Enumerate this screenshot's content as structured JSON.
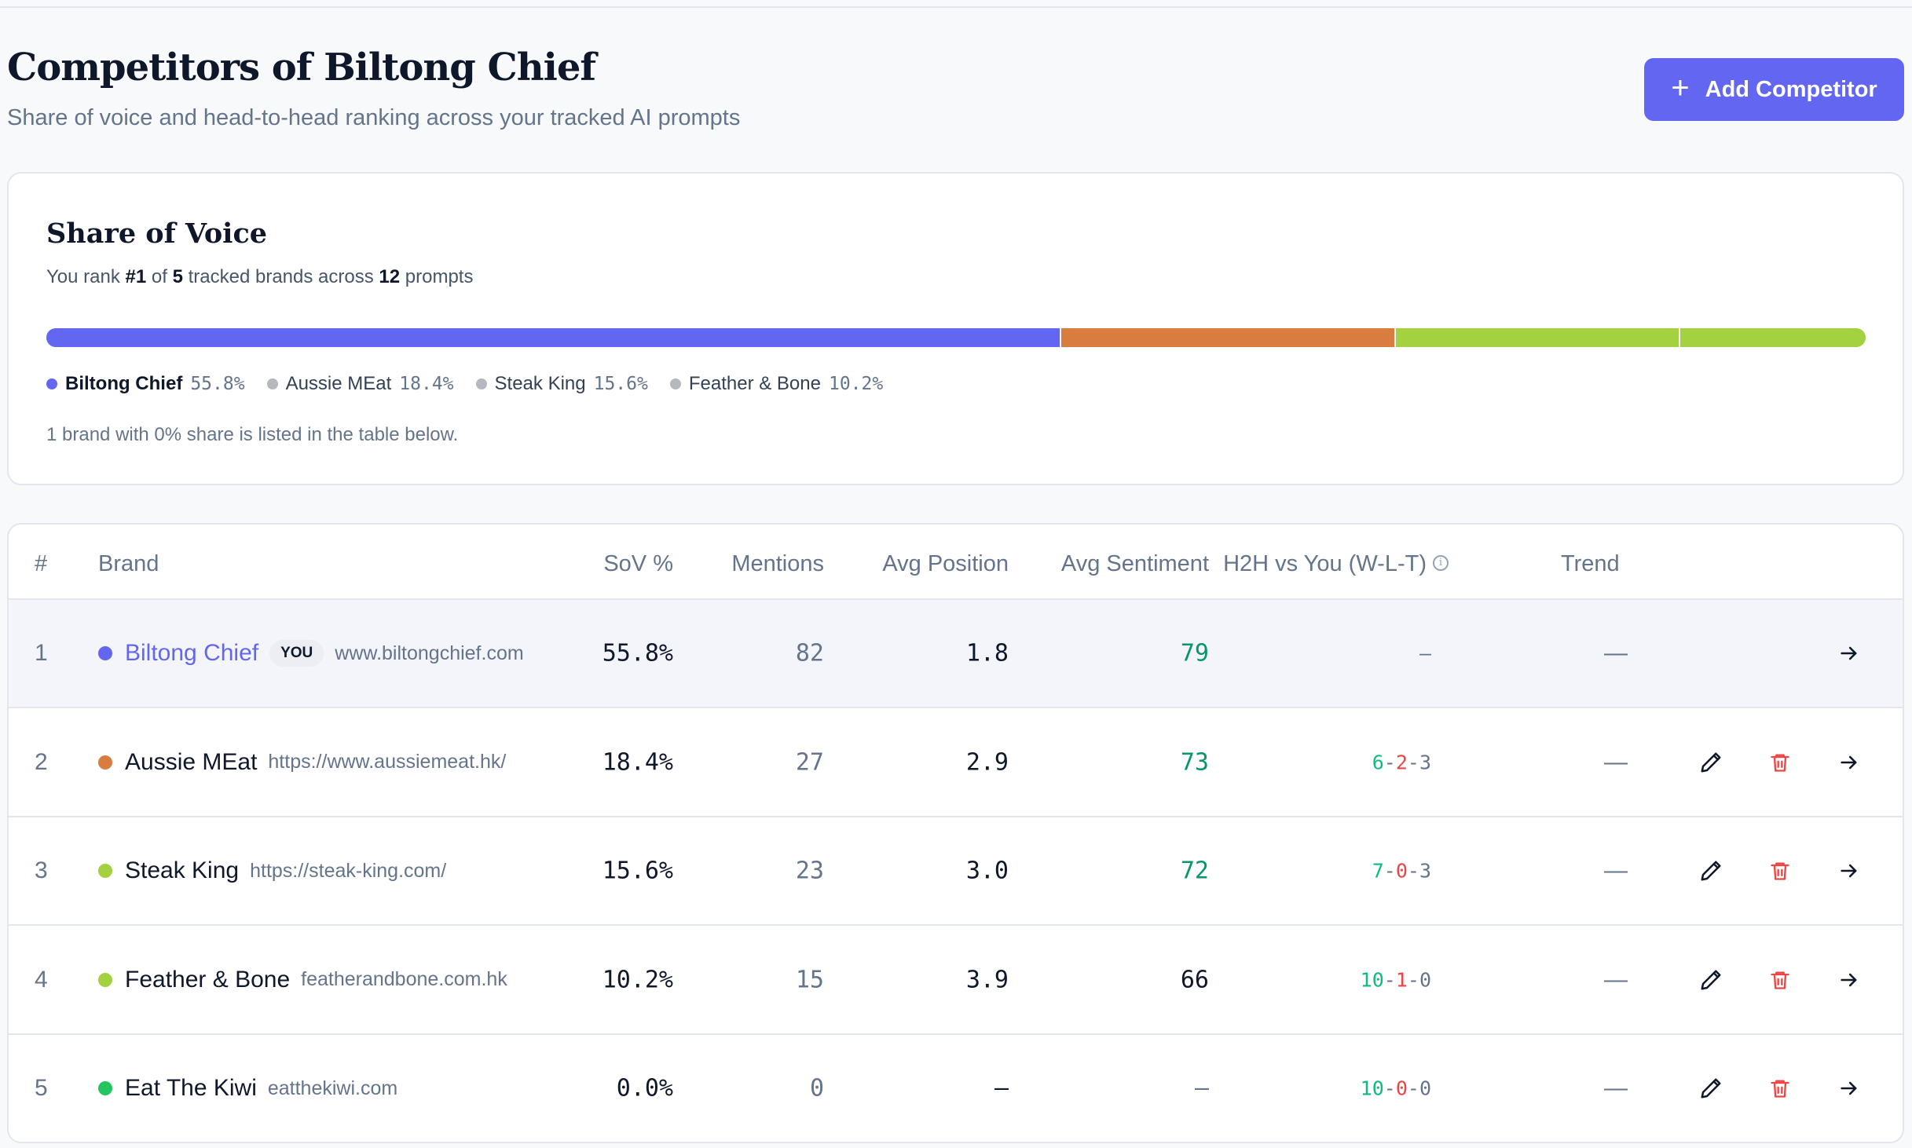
{
  "header": {
    "title": "Competitors of Biltong Chief",
    "subtitle": "Share of voice and head-to-head ranking across your tracked AI prompts",
    "add_button": "Add Competitor"
  },
  "share_of_voice": {
    "title": "Share of Voice",
    "rank_prefix": "You rank ",
    "rank": "#1",
    "rank_mid": " of ",
    "brand_count": "5",
    "rank_mid2": " tracked brands across ",
    "prompt_count": "12",
    "rank_suffix": " prompts",
    "segments": [
      {
        "name": "Biltong Chief",
        "value": 55.8,
        "label": "55.8%",
        "color": "#6366f1",
        "legend_dot": "#6366f1"
      },
      {
        "name": "Aussie MEat",
        "value": 18.4,
        "label": "18.4%",
        "color": "#d97c3f",
        "legend_dot": "#b5b8be"
      },
      {
        "name": "Steak King",
        "value": 15.6,
        "label": "15.6%",
        "color": "#a3d140",
        "legend_dot": "#b5b8be"
      },
      {
        "name": "Feather & Bone",
        "value": 10.2,
        "label": "10.2%",
        "color": "#a3d140",
        "legend_dot": "#b5b8be"
      }
    ],
    "note": "1 brand with 0% share is listed in the table below."
  },
  "table": {
    "headers": {
      "rank": "#",
      "brand": "Brand",
      "sov": "SoV %",
      "mentions": "Mentions",
      "avg_position": "Avg Position",
      "avg_sentiment": "Avg Sentiment",
      "h2h": "H2H vs You (W-L-T)",
      "trend": "Trend"
    },
    "rows": [
      {
        "rank": "1",
        "name": "Biltong Chief",
        "you": true,
        "badge": "YOU",
        "url": "www.biltongchief.com",
        "color": "#6366f1",
        "sov": "55.8%",
        "mentions": "82",
        "position": "1.8",
        "sentiment": "79",
        "sentiment_tone": "good",
        "h2h": "–",
        "trend": "—"
      },
      {
        "rank": "2",
        "name": "Aussie MEat",
        "you": false,
        "url": "https://www.aussiemeat.hk/",
        "color": "#d97c3f",
        "sov": "18.4%",
        "mentions": "27",
        "position": "2.9",
        "sentiment": "73",
        "sentiment_tone": "good",
        "h2h_w": "6",
        "h2h_l": "2",
        "h2h_t": "3",
        "trend": "—"
      },
      {
        "rank": "3",
        "name": "Steak King",
        "you": false,
        "url": "https://steak-king.com/",
        "color": "#a3d140",
        "sov": "15.6%",
        "mentions": "23",
        "position": "3.0",
        "sentiment": "72",
        "sentiment_tone": "good",
        "h2h_w": "7",
        "h2h_l": "0",
        "h2h_t": "3",
        "trend": "—"
      },
      {
        "rank": "4",
        "name": "Feather & Bone",
        "you": false,
        "url": "featherandbone.com.hk",
        "color": "#a3d140",
        "sov": "10.2%",
        "mentions": "15",
        "position": "3.9",
        "sentiment": "66",
        "sentiment_tone": "neutral",
        "h2h_w": "10",
        "h2h_l": "1",
        "h2h_t": "0",
        "trend": "—"
      },
      {
        "rank": "5",
        "name": "Eat The Kiwi",
        "you": false,
        "url": "eatthekiwi.com",
        "color": "#22c55e",
        "sov": "0.0%",
        "mentions": "0",
        "position": "–",
        "sentiment": "–",
        "sentiment_tone": "none",
        "h2h_w": "10",
        "h2h_l": "0",
        "h2h_t": "0",
        "trend": "—"
      }
    ]
  },
  "icons": {
    "add": "plus-icon",
    "info": "info-icon",
    "edit": "pencil-icon",
    "delete": "trash-icon",
    "open": "arrow-right-icon"
  }
}
